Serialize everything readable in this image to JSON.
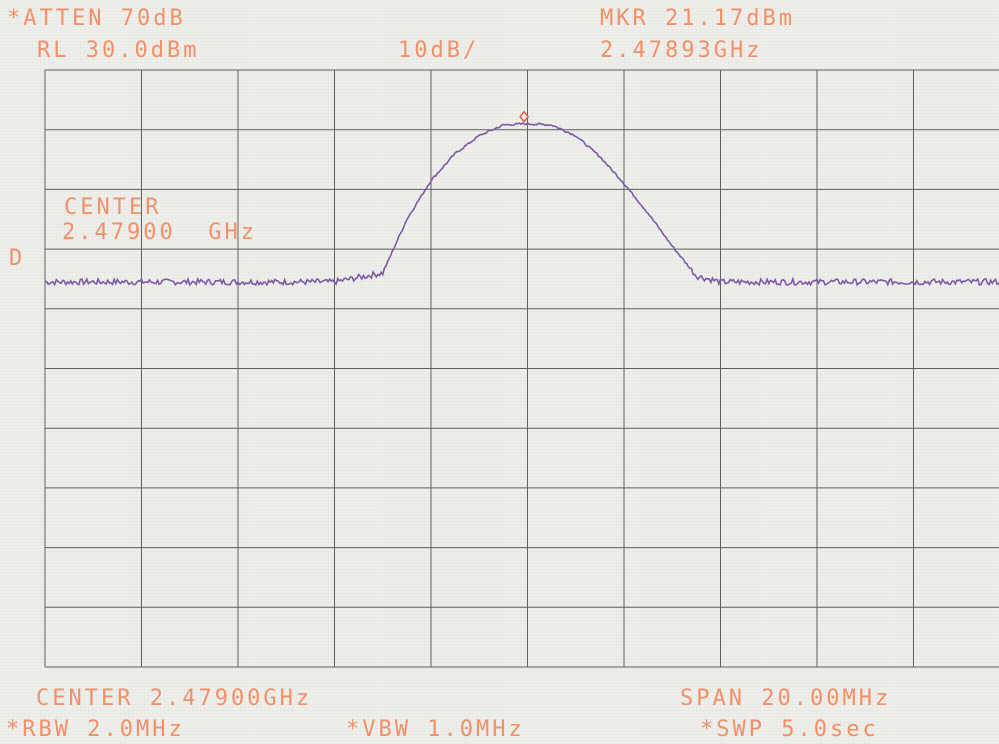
{
  "header": {
    "atten": "*ATTEN 70dB",
    "mkr": "MKR 21.17dBm",
    "ref_level": "RL 30.0dBm",
    "scale": "10dB/",
    "mkr_freq": "2.47893GHz"
  },
  "annotation": {
    "center_word": "CENTER",
    "center_value": "2.47900  GHz",
    "d_marker": "D"
  },
  "footer": {
    "center": "CENTER 2.47900GHz",
    "span": "SPAN 20.00MHz",
    "rbw": "*RBW 2.0MHz",
    "vbw": "*VBW 1.0MHz",
    "swp": "*SWP 5.0sec"
  },
  "colors": {
    "text": "#f29068",
    "trace": "#7d5aa6",
    "grid": "#606060",
    "marker": "#e0604a"
  },
  "chart_data": {
    "type": "line",
    "title": "",
    "xlabel": "",
    "ylabel": "",
    "grid": true,
    "xlim": [
      2.469,
      2.489
    ],
    "ylim": [
      -70,
      30
    ],
    "x_unit": "GHz",
    "y_unit": "dBm",
    "series": [
      {
        "x": [
          2.469,
          2.4715,
          2.474,
          2.475,
          2.476,
          2.4765,
          2.477,
          2.4775,
          2.478,
          2.4785,
          2.479,
          2.4795,
          2.48,
          2.4805,
          2.481,
          2.4815,
          2.482,
          2.4825,
          2.483,
          2.484,
          2.4865,
          2.489
        ],
        "y": [
          -5.5,
          -5.5,
          -5.5,
          -5.5,
          -4.0,
          5.0,
          11.5,
          16.0,
          19.0,
          20.8,
          21.0,
          20.8,
          19.0,
          15.5,
          11.0,
          6.0,
          0.5,
          -4.5,
          -5.5,
          -5.5,
          -5.5,
          -5.5
        ]
      }
    ],
    "marker": {
      "x": 2.47893,
      "y": 21.17
    }
  }
}
